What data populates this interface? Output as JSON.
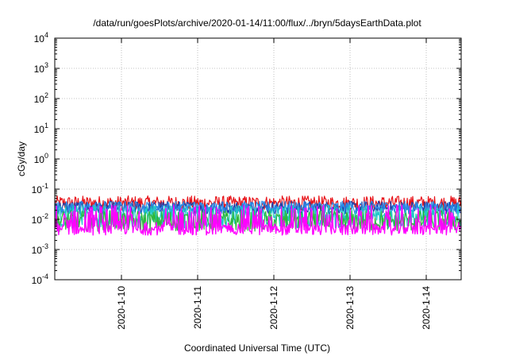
{
  "chart_data": {
    "type": "line",
    "title": "/data/run/goesPlots/archive/2020-01-14/11:00/flux/../bryn/5daysEarthData.plot",
    "xlabel": "Coordinated Universal Time (UTC)",
    "ylabel": "cGy/day",
    "yscale": "log",
    "ylim": [
      0.0001,
      10000
    ],
    "xlim": [
      "2020-01-09T03:00",
      "2020-01-14T11:00"
    ],
    "y_tick_labels": [
      {
        "base": "10",
        "exp": "-4"
      },
      {
        "base": "10",
        "exp": "-3"
      },
      {
        "base": "10",
        "exp": "-2"
      },
      {
        "base": "10",
        "exp": "-1"
      },
      {
        "base": "10",
        "exp": "0"
      },
      {
        "base": "10",
        "exp": "1"
      },
      {
        "base": "10",
        "exp": "2"
      },
      {
        "base": "10",
        "exp": "3"
      },
      {
        "base": "10",
        "exp": "4"
      }
    ],
    "x_tick_labels": [
      "2020-1-10",
      "2020-1-11",
      "2020-1-12",
      "2020-1-13",
      "2020-1-14"
    ],
    "grid": true,
    "series": [
      {
        "color": "#e8141a",
        "typical_range": [
          0.02,
          0.06
        ]
      },
      {
        "color": "#1f3fa8",
        "typical_range": [
          0.015,
          0.04
        ]
      },
      {
        "color": "#2b8ae6",
        "typical_range": [
          0.015,
          0.04
        ]
      },
      {
        "color": "#1ec8c8",
        "typical_range": [
          0.005,
          0.03
        ]
      },
      {
        "color": "#2db83d",
        "typical_range": [
          0.004,
          0.02
        ]
      },
      {
        "color": "#ff00ff",
        "typical_range": [
          0.003,
          0.03
        ]
      }
    ]
  }
}
